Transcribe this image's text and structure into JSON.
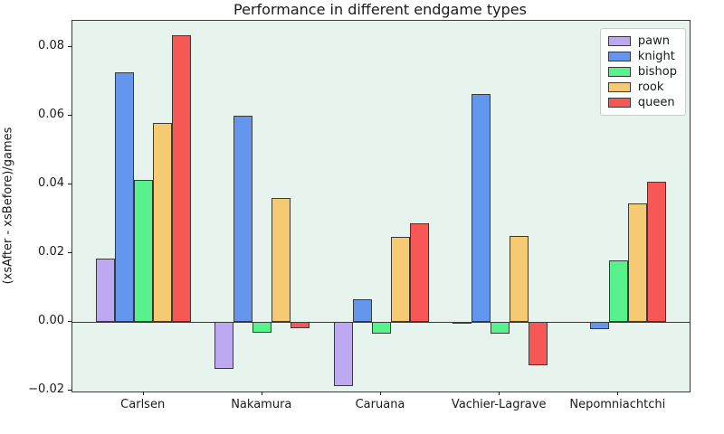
{
  "chart_data": {
    "type": "bar",
    "title": "Performance in different endgame types",
    "xlabel": "",
    "ylabel": "(xsAfter - xsBefore)/games",
    "categories": [
      "Carlsen",
      "Nakamura",
      "Caruana",
      "Vachier-Lagrave",
      "Nepomniachtchi"
    ],
    "series": [
      {
        "name": "pawn",
        "color": "#bda9f2",
        "values": [
          0.0186,
          -0.0136,
          -0.0187,
          -0.0005,
          0.0
        ]
      },
      {
        "name": "knight",
        "color": "#6596ed",
        "values": [
          0.0727,
          0.0601,
          0.0066,
          0.0663,
          -0.0021
        ]
      },
      {
        "name": "bishop",
        "color": "#58f28d",
        "values": [
          0.0413,
          -0.0032,
          -0.0034,
          -0.0034,
          0.0181
        ]
      },
      {
        "name": "rook",
        "color": "#f5ca72",
        "values": [
          0.058,
          0.0362,
          0.0248,
          0.0251,
          0.0345
        ]
      },
      {
        "name": "queen",
        "color": "#f75856",
        "values": [
          0.0834,
          -0.0018,
          0.0288,
          -0.0125,
          0.0408
        ]
      }
    ],
    "yticks": [
      -0.02,
      0.0,
      0.02,
      0.04,
      0.06,
      0.08
    ],
    "ylim": [
      -0.0202,
      0.0877
    ],
    "grid": false,
    "legend_position": "upper right",
    "colors": {
      "plot_background": "#e7f4ee",
      "bar_edge": "#3a3a3a",
      "axis_frame": "#3a3a3a",
      "zero_line": "#3a3a3a",
      "text": "#1a1a1a"
    }
  }
}
